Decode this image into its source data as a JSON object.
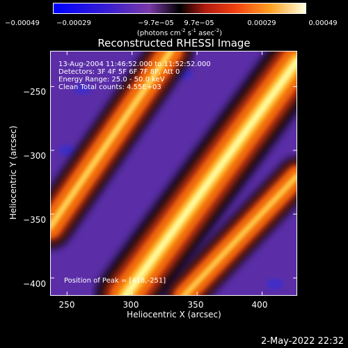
{
  "colorbar": {
    "ticks": [
      "-0.00049",
      "-0.00029",
      "-9.7e-05",
      "9.7e-05",
      "0.00029",
      "0.00049"
    ],
    "units_main": "(photons cm",
    "units_sup1": "-2",
    "units_mid1": " s",
    "units_sup2": "-1",
    "units_mid2": " asec",
    "units_sup3": "-2",
    "units_end": ")"
  },
  "annotations": {
    "time_range": "13-Aug-2004 11:46:52.000 to 11:52:52.000",
    "detectors": "Detectors: 3F 4F 5F 6F 7F 8F, Att 0",
    "energy": "Energy Range: 25.0 - 50.0 keV",
    "clean": "Clean    Total counts: 4.55E+03",
    "peak": "Position of Peak = [418,-251]"
  },
  "footer": {
    "timestamp": "2-May-2022 22:32"
  },
  "chart_data": {
    "type": "heatmap",
    "title": "Reconstructed RHESSI Image",
    "xlabel": "Heliocentric X (arcsec)",
    "ylabel": "Heliocentric Y (arcsec)",
    "xlim": [
      237,
      427
    ],
    "ylim": [
      -414,
      -222
    ],
    "xticks": [
      250,
      300,
      350,
      400
    ],
    "xtick_labels": [
      "250",
      "300",
      "350",
      "400"
    ],
    "yticks": [
      -250,
      -300,
      -350,
      -400
    ],
    "ytick_labels": [
      "-250",
      "-300",
      "-350",
      "-400"
    ],
    "value_range": [
      -0.00049,
      0.00049
    ],
    "colormap": [
      "#0000ff",
      "#5a38b0",
      "#7b3fa8",
      "#000000",
      "#c83a12",
      "#f06a10",
      "#ffb020",
      "#ffffa0"
    ],
    "peak_position": [
      418,
      -251
    ],
    "grid": false,
    "emission_bands": [
      {
        "name": "main",
        "from": [
          295,
          -414
        ],
        "to": [
          427,
          -230
        ],
        "width": 22,
        "level": 0.95
      },
      {
        "name": "upper-left",
        "from": [
          237,
          -360
        ],
        "to": [
          330,
          -222
        ],
        "width": 16,
        "level": 0.6
      },
      {
        "name": "lower-right",
        "from": [
          340,
          -414
        ],
        "to": [
          427,
          -320
        ],
        "width": 14,
        "level": 0.55
      }
    ]
  }
}
